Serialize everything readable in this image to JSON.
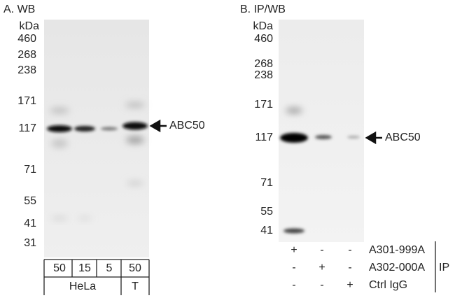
{
  "panel_a": {
    "title": "A. WB",
    "unit": "kDa",
    "markers": [
      460,
      268,
      238,
      171,
      117,
      71,
      55,
      41,
      31
    ],
    "target": "ABC50",
    "amounts": [
      50,
      15,
      5,
      50
    ],
    "cell_lines": [
      "HeLa",
      "T"
    ]
  },
  "panel_b": {
    "title": "B. IP/WB",
    "unit": "kDa",
    "markers": [
      460,
      268,
      238,
      171,
      117,
      71,
      55,
      41
    ],
    "target": "ABC50",
    "rows": [
      {
        "label": "A301-999A",
        "signs": [
          "+",
          "-",
          "-"
        ]
      },
      {
        "label": "A302-000A",
        "signs": [
          "-",
          "+",
          "-"
        ]
      },
      {
        "label": "Ctrl IgG",
        "signs": [
          "-",
          "-",
          "+"
        ]
      }
    ],
    "group": "IP"
  }
}
